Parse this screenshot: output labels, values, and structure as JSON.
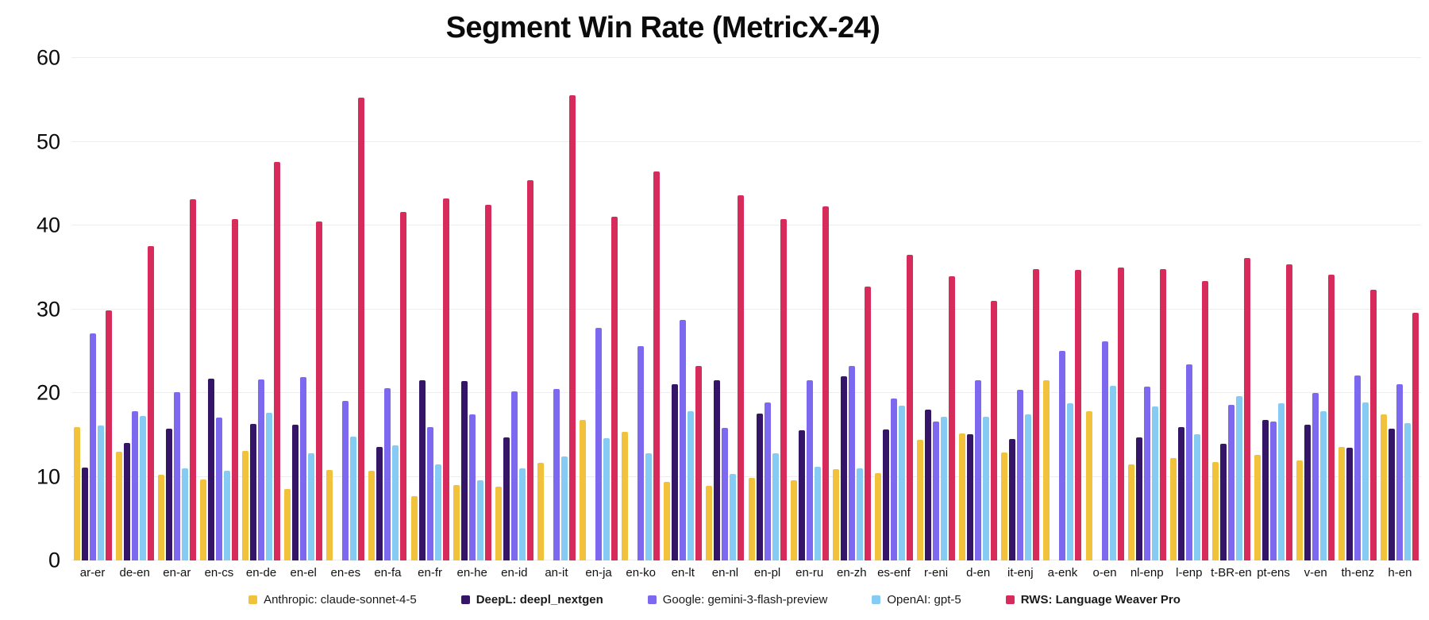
{
  "chart_data": {
    "type": "bar",
    "title": "Segment Win Rate (MetricX-24)",
    "xlabel": "",
    "ylabel": "",
    "ylim": [
      0,
      60
    ],
    "yticks": [
      0,
      10,
      20,
      30,
      40,
      50,
      60
    ],
    "grid": "horizontal",
    "legend_position": "bottom",
    "categories": [
      "ar-er",
      "de-en",
      "en-ar",
      "en-cs",
      "en-de",
      "en-el",
      "en-es",
      "en-fa",
      "en-fr",
      "en-he",
      "en-id",
      "an-it",
      "en-ja",
      "en-ko",
      "en-lt",
      "en-nl",
      "en-pl",
      "en-ru",
      "en-zh",
      "es-enf",
      "r-eni",
      "d-en",
      "it-enj",
      "a-enk",
      "o-en",
      "nl-enp",
      "l-enp",
      "t-BR-en",
      "pt-ens",
      "v-en",
      "th-enz",
      "h-en"
    ],
    "series": [
      {
        "name": "Anthropic: claude-sonnet-4-5",
        "color": "#F2C23C",
        "bold_legend": false,
        "values": [
          15.9,
          13.0,
          10.2,
          9.7,
          13.1,
          8.5,
          10.8,
          10.7,
          7.7,
          9.0,
          8.8,
          11.7,
          16.8,
          15.4,
          9.4,
          8.9,
          9.9,
          9.6,
          10.9,
          10.4,
          14.4,
          15.2,
          12.9,
          21.5,
          17.8,
          11.5,
          12.2,
          11.8,
          12.6,
          11.9,
          13.6,
          17.4
        ]
      },
      {
        "name": "DeepL: deepl_nextgen",
        "color": "#341568",
        "bold_legend": true,
        "values": [
          11.1,
          14.0,
          15.7,
          21.7,
          16.3,
          16.2,
          null,
          13.6,
          21.5,
          21.4,
          14.7,
          null,
          null,
          null,
          21.0,
          21.5,
          17.5,
          15.5,
          22.0,
          15.6,
          18.0,
          15.1,
          14.5,
          null,
          null,
          14.7,
          15.9,
          13.9,
          16.8,
          16.2,
          13.5,
          15.7
        ]
      },
      {
        "name": "Google: gemini-3-flash-preview",
        "color": "#7D68F0",
        "bold_legend": false,
        "values": [
          27.1,
          17.8,
          20.1,
          17.1,
          21.6,
          21.9,
          19.1,
          20.6,
          15.9,
          17.4,
          20.2,
          20.5,
          27.8,
          25.6,
          28.7,
          15.8,
          18.9,
          21.5,
          23.2,
          19.3,
          16.6,
          21.5,
          20.4,
          25.0,
          26.2,
          20.8,
          23.4,
          18.6,
          16.6,
          20.0,
          22.1,
          21.0
        ]
      },
      {
        "name": "OpenAI: gpt-5",
        "color": "#86CBF4",
        "bold_legend": false,
        "values": [
          16.1,
          17.3,
          11.0,
          10.7,
          17.6,
          12.8,
          14.8,
          13.7,
          11.5,
          9.6,
          11.0,
          12.4,
          14.6,
          12.8,
          17.8,
          10.3,
          12.8,
          11.2,
          11.0,
          18.5,
          17.2,
          17.2,
          17.4,
          18.8,
          20.9,
          18.4,
          15.1,
          19.6,
          18.8,
          17.8,
          18.9,
          16.4
        ]
      },
      {
        "name": "RWS: Language Weaver Pro",
        "color": "#D62B5B",
        "bold_legend": true,
        "values": [
          29.9,
          37.5,
          43.1,
          40.8,
          47.6,
          40.5,
          55.3,
          41.6,
          43.2,
          42.5,
          45.4,
          55.5,
          41.0,
          46.4,
          23.2,
          43.6,
          40.8,
          42.3,
          32.7,
          36.5,
          33.9,
          31.0,
          34.8,
          34.7,
          35.0,
          34.8,
          33.4,
          36.1,
          35.4,
          34.1,
          32.3,
          29.6
        ]
      }
    ]
  }
}
